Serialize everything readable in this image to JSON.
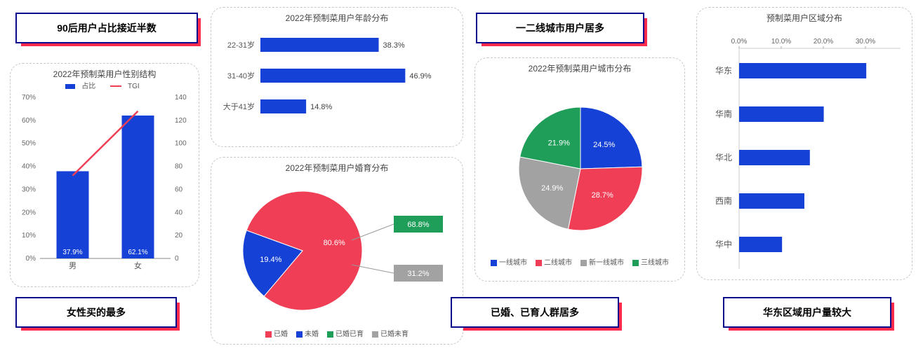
{
  "colors": {
    "blue": "#1641d6",
    "red": "#ef3e55",
    "green": "#1f9e5a",
    "gray": "#a2a2a2",
    "text": "#555555",
    "axis": "#888888",
    "border": "#c8c8c8"
  },
  "callouts": {
    "c1": "90后用户占比接近半数",
    "c2": "一二线城市用户居多",
    "c3": "女性买的最多",
    "c4": "已婚、已育人群居多",
    "c5": "华东区域用户量较大"
  },
  "gender_chart": {
    "title": "2022年预制菜用户性别结构",
    "legend": {
      "bar": "占比",
      "line": "TGI"
    },
    "y_left": {
      "ticks": [
        0,
        10,
        20,
        30,
        40,
        50,
        60,
        70
      ],
      "fmt": "%"
    },
    "y_right": {
      "ticks": [
        0,
        20,
        40,
        60,
        80,
        100,
        120,
        140
      ]
    },
    "cats": [
      "男",
      "女"
    ],
    "bar_values": [
      37.9,
      62.1
    ],
    "bar_labels": [
      "37.9%",
      "62.1%"
    ],
    "tgi": [
      72,
      128
    ],
    "bar_color": "#1641d6",
    "line_color": "#ef3e55"
  },
  "age_chart": {
    "title": "2022年预制菜用户年龄分布",
    "cats": [
      "22-31岁",
      "31-40岁",
      "大于41岁"
    ],
    "values": [
      38.3,
      46.9,
      14.8
    ],
    "labels": [
      "38.3%",
      "46.9%",
      "14.8%"
    ],
    "xmax": 50,
    "bar_color": "#1641d6"
  },
  "marital_chart": {
    "title": "2022年预制菜用户婚育分布",
    "slices": [
      {
        "label": "已婚",
        "value": 80.6,
        "color": "#ef3e55",
        "text": "80.6%"
      },
      {
        "label": "未婚",
        "value": 19.4,
        "color": "#1641d6",
        "text": "19.4%"
      }
    ],
    "side_boxes": [
      {
        "text": "68.8%",
        "color": "#1f9e5a"
      },
      {
        "text": "31.2%",
        "color": "#a2a2a2"
      }
    ],
    "legend": [
      "已婚",
      "未婚",
      "已婚已育",
      "已婚未育"
    ],
    "legend_colors": [
      "#ef3e55",
      "#1641d6",
      "#1f9e5a",
      "#a2a2a2"
    ]
  },
  "city_chart": {
    "title": "2022年预制菜用户城市分布",
    "slices": [
      {
        "label": "一线城市",
        "value": 24.5,
        "color": "#1641d6",
        "text": "24.5%"
      },
      {
        "label": "二线城市",
        "value": 28.7,
        "color": "#ef3e55",
        "text": "28.7%"
      },
      {
        "label": "新一线城市",
        "value": 24.9,
        "color": "#a2a2a2",
        "text": "24.9%"
      },
      {
        "label": "三线城市",
        "value": 21.9,
        "color": "#1f9e5a",
        "text": "21.9%"
      }
    ]
  },
  "region_chart": {
    "title": "预制菜用户区域分布",
    "x_ticks": [
      0,
      10,
      20,
      30
    ],
    "x_labels": [
      "0.0%",
      "10.0%",
      "20.0%",
      "30.0%"
    ],
    "xmax": 35,
    "cats": [
      "华东",
      "华南",
      "华北",
      "西南",
      "华中"
    ],
    "values": [
      30.2,
      20.1,
      16.8,
      15.5,
      10.2
    ],
    "bar_color": "#1641d6"
  }
}
